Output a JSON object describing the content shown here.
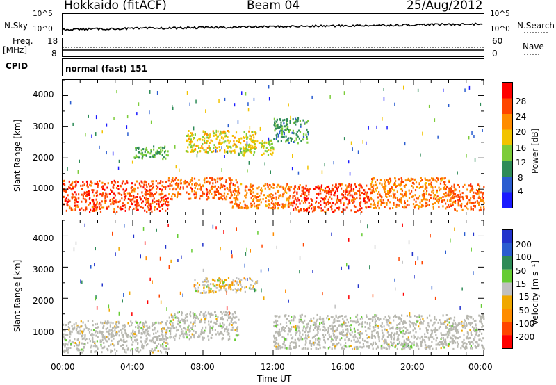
{
  "header": {
    "station": "Hokkaido (fitACF)",
    "beam": "Beam 04",
    "date": "25/Aug/2012"
  },
  "noise_panel": {
    "left_label": "N.Sky",
    "right_label": "N.Search",
    "left_ticks": [
      "10^5",
      "10^0"
    ],
    "right_ticks": [
      "10^5",
      "10^0"
    ]
  },
  "freq_panel": {
    "label_line1": "Freq.",
    "label_line2": "[MHz]",
    "left_ticks": [
      "18",
      "8"
    ],
    "right_ticks": [
      "60",
      "0"
    ],
    "right_label": "Nave"
  },
  "cpid_panel": {
    "label": "CPID",
    "value": "normal (fast) 151"
  },
  "power_panel": {
    "ylabel": "Slant Range [km]",
    "yticks": [
      "1000",
      "2000",
      "3000",
      "4000"
    ],
    "colorbar_label": "Power [dB]",
    "colorbar_ticks": [
      "4",
      "8",
      "12",
      "16",
      "20",
      "24",
      "28"
    ]
  },
  "velocity_panel": {
    "ylabel": "Slant Range [km]",
    "yticks": [
      "1000",
      "2000",
      "3000",
      "4000"
    ],
    "colorbar_label": "Velocity [m s⁻¹]",
    "colorbar_ticks": [
      "200",
      "100",
      "50",
      "15",
      "-15",
      "-50",
      "-100",
      "-200"
    ]
  },
  "xaxis": {
    "label": "Time UT",
    "ticks": [
      "00:00",
      "04:00",
      "08:00",
      "12:00",
      "16:00",
      "20:00",
      "00:00"
    ]
  },
  "colors": {
    "power_scale": [
      "#1a1aff",
      "#2a5dd0",
      "#2e8b57",
      "#7ccc3a",
      "#f2c300",
      "#ff8c00",
      "#ff4500",
      "#ff0000"
    ],
    "velocity_scale": [
      "#2233cc",
      "#2a5dd0",
      "#2e8b57",
      "#66cc33",
      "#c0c0c0",
      "#f0a800",
      "#ff8c00",
      "#ff4500",
      "#ff0000"
    ],
    "ground_scatter": "#b8b8b0"
  },
  "chart_data": [
    {
      "type": "heatmap",
      "title": "Power",
      "xlabel": "Time UT",
      "ylabel": "Slant Range [km]",
      "xlim": [
        0,
        24
      ],
      "ylim": [
        180,
        4500
      ],
      "zlabel": "Power [dB]",
      "zlim": [
        0,
        32
      ],
      "regions": [
        {
          "x": [
            0,
            6
          ],
          "y": [
            300,
            1300
          ],
          "value": 28
        },
        {
          "x": [
            6,
            10
          ],
          "y": [
            700,
            1400
          ],
          "value": 26
        },
        {
          "x": [
            9.5,
            13
          ],
          "y": [
            400,
            1200
          ],
          "value": 24
        },
        {
          "x": [
            13,
            17.5
          ],
          "y": [
            300,
            1200
          ],
          "value": 28
        },
        {
          "x": [
            17.5,
            22
          ],
          "y": [
            400,
            1400
          ],
          "value": 24
        },
        {
          "x": [
            22,
            24
          ],
          "y": [
            300,
            1200
          ],
          "value": 26
        },
        {
          "x": [
            7,
            11
          ],
          "y": [
            2200,
            2900
          ],
          "value": 18
        },
        {
          "x": [
            10,
            12
          ],
          "y": [
            2100,
            2600
          ],
          "value": 16
        },
        {
          "x": [
            4,
            6
          ],
          "y": [
            2000,
            2400
          ],
          "value": 12
        },
        {
          "x": [
            12,
            14
          ],
          "y": [
            2500,
            3300
          ],
          "value": 10
        }
      ]
    },
    {
      "type": "heatmap",
      "title": "Velocity",
      "xlabel": "Time UT",
      "ylabel": "Slant Range [km]",
      "xlim": [
        0,
        24
      ],
      "ylim": [
        180,
        4500
      ],
      "zlabel": "Velocity [m s⁻¹]",
      "zlim": [
        -250,
        250
      ],
      "regions": [
        {
          "x": [
            0,
            6
          ],
          "y": [
            300,
            1300
          ],
          "value": 0
        },
        {
          "x": [
            6,
            10
          ],
          "y": [
            700,
            1600
          ],
          "value": 0
        },
        {
          "x": [
            7.5,
            11
          ],
          "y": [
            2200,
            2700
          ],
          "value": -30
        },
        {
          "x": [
            12,
            24
          ],
          "y": [
            400,
            1500
          ],
          "value": 0
        },
        {
          "x": [
            18.5,
            20
          ],
          "y": [
            400,
            600
          ],
          "value": 30
        }
      ]
    }
  ]
}
